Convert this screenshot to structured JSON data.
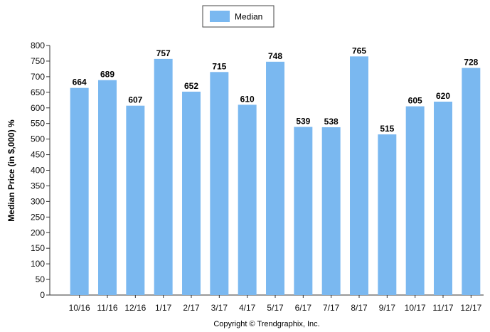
{
  "chart_data": {
    "type": "bar",
    "categories": [
      "10/16",
      "11/16",
      "12/16",
      "1/17",
      "2/17",
      "3/17",
      "4/17",
      "5/17",
      "6/17",
      "7/17",
      "8/17",
      "9/17",
      "10/17",
      "11/17",
      "12/17"
    ],
    "series": [
      {
        "name": "Median",
        "values": [
          664,
          689,
          607,
          757,
          652,
          715,
          610,
          748,
          539,
          538,
          765,
          515,
          605,
          620,
          728
        ]
      }
    ],
    "ylabel": "Median Price (in $,000) %",
    "xlabel": "",
    "ylim": [
      0,
      800
    ],
    "ytick_step": 50,
    "grid": false,
    "legend": "top-center",
    "bar_color": "#7ab8f0",
    "footer": "Copyright © Trendgraphix, Inc."
  }
}
